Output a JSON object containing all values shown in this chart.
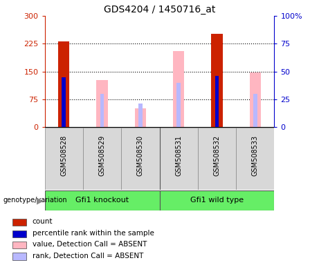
{
  "title": "GDS4204 / 1450716_at",
  "samples": [
    "GSM508528",
    "GSM508529",
    "GSM508530",
    "GSM508531",
    "GSM508532",
    "GSM508533"
  ],
  "group1_label": "Gfi1 knockout",
  "group2_label": "Gfi1 wild type",
  "group_color": "#66EE66",
  "count_values": [
    232,
    null,
    null,
    null,
    252,
    null
  ],
  "rank_values_left": [
    135,
    null,
    null,
    null,
    138,
    null
  ],
  "absent_value": [
    null,
    128,
    50,
    205,
    null,
    148
  ],
  "absent_rank_left": [
    null,
    90,
    63,
    120,
    null,
    90
  ],
  "ylim_left": [
    0,
    300
  ],
  "ylim_right": [
    0,
    100
  ],
  "yticks_left": [
    0,
    75,
    150,
    225,
    300
  ],
  "yticks_right": [
    0,
    25,
    50,
    75,
    100
  ],
  "ytick_labels_left": [
    "0",
    "75",
    "150",
    "225",
    "300"
  ],
  "ytick_labels_right": [
    "0",
    "25",
    "50",
    "75",
    "100%"
  ],
  "hgrid_at": [
    75,
    150,
    225
  ],
  "left_axis_color": "#cc2200",
  "right_axis_color": "#0000cc",
  "bar_width": 0.3,
  "rank_bar_width": 0.1,
  "absent_bar_color": "#FFB6C1",
  "absent_rank_color": "#b8b8ff",
  "legend_items": [
    {
      "color": "#cc2200",
      "label": "count"
    },
    {
      "color": "#0000cc",
      "label": "percentile rank within the sample"
    },
    {
      "color": "#FFB6C1",
      "label": "value, Detection Call = ABSENT"
    },
    {
      "color": "#b8b8ff",
      "label": "rank, Detection Call = ABSENT"
    }
  ]
}
